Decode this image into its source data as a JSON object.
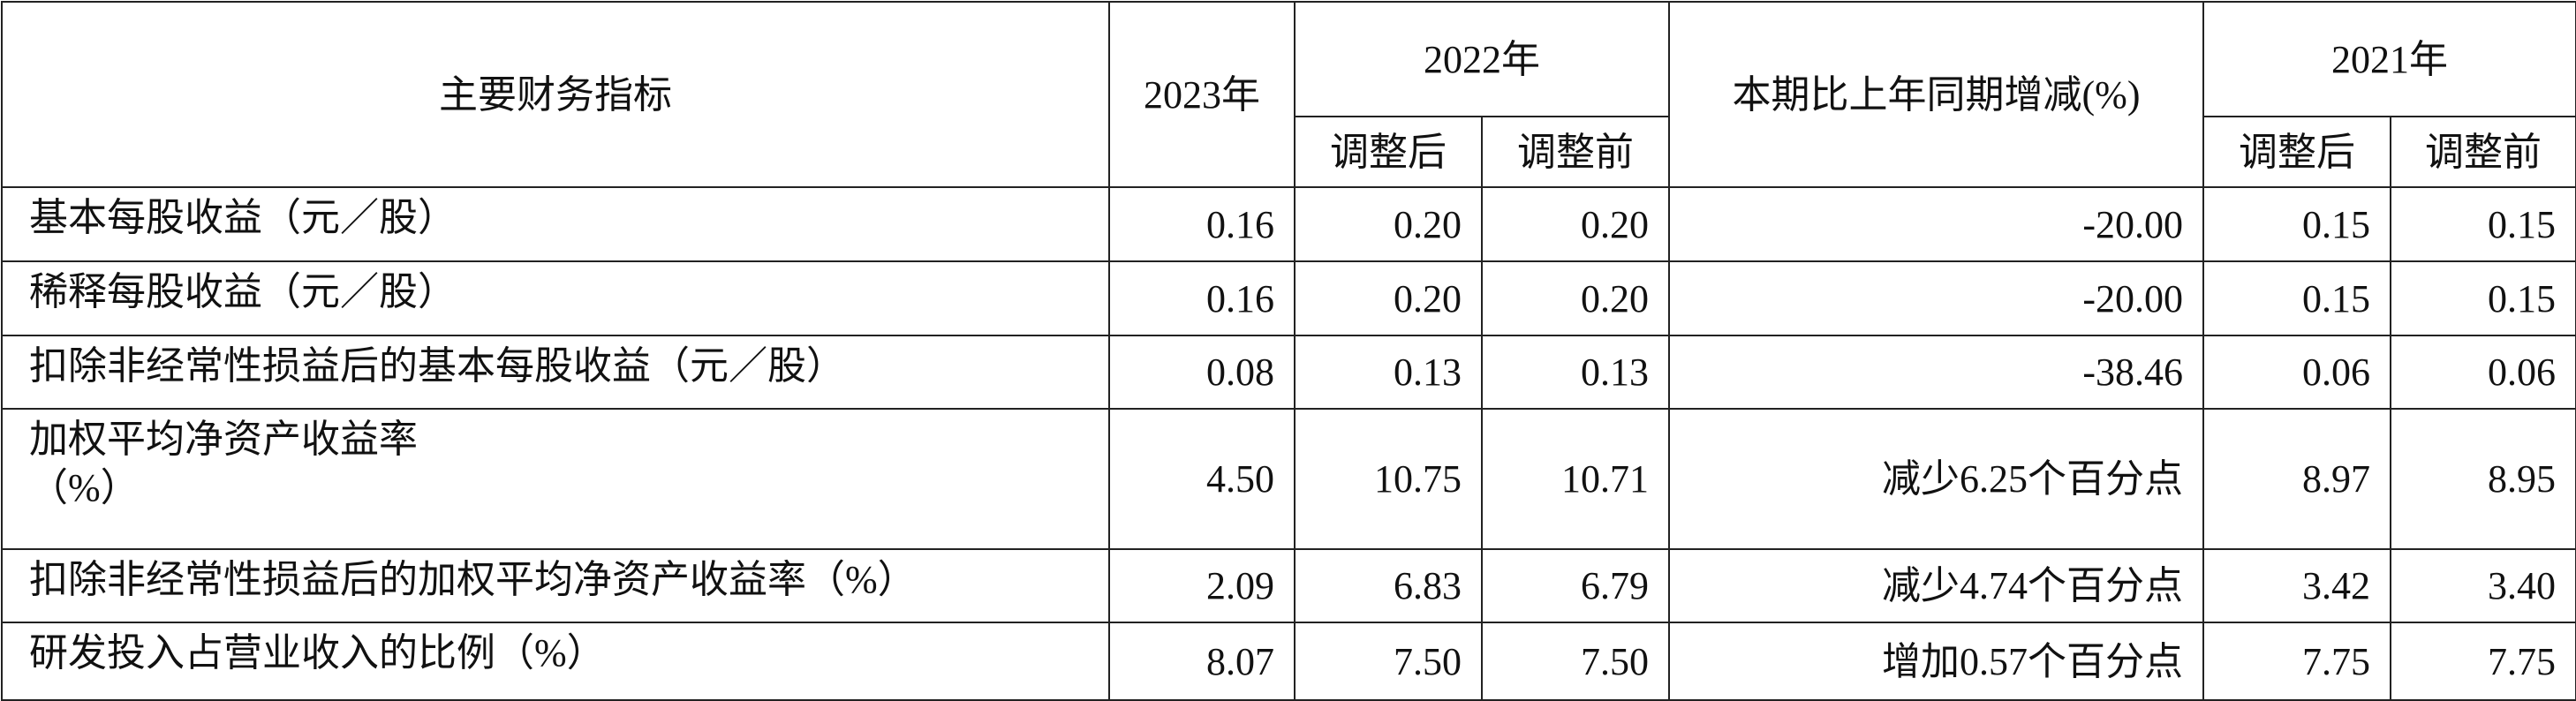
{
  "table": {
    "headers": [
      "主要财务指标",
      "2023年",
      "2022年",
      "本期比上年同期增减(%)",
      "2021年"
    ],
    "subheaders": [
      "调整后",
      "调整前",
      "调整后",
      "调整前"
    ],
    "rows": [
      [
        "基本每股收益（元／股）",
        "0.16",
        "0.20",
        "0.20",
        "-20.00",
        "0.15",
        "0.15"
      ],
      [
        "稀释每股收益（元／股）",
        "0.16",
        "0.20",
        "0.20",
        "-20.00",
        "0.15",
        "0.15"
      ],
      [
        "扣除非经常性损益后的基本每股收益（元／股）",
        "0.08",
        "0.13",
        "0.13",
        "-38.46",
        "0.06",
        "0.06"
      ],
      [
        "加权平均净资产收益率\n（%）",
        "4.50",
        "10.75",
        "10.71",
        "减少6.25个百分点",
        "8.97",
        "8.95"
      ],
      [
        "扣除非经常性损益后的加权平均净资产收益率（%）",
        "2.09",
        "6.83",
        "6.79",
        "减少4.74个百分点",
        "3.42",
        "3.40"
      ],
      [
        "研发投入占营业收入的比例（%）",
        "8.07",
        "7.50",
        "7.50",
        "增加0.57个百分点",
        "7.75",
        "7.75"
      ]
    ]
  }
}
